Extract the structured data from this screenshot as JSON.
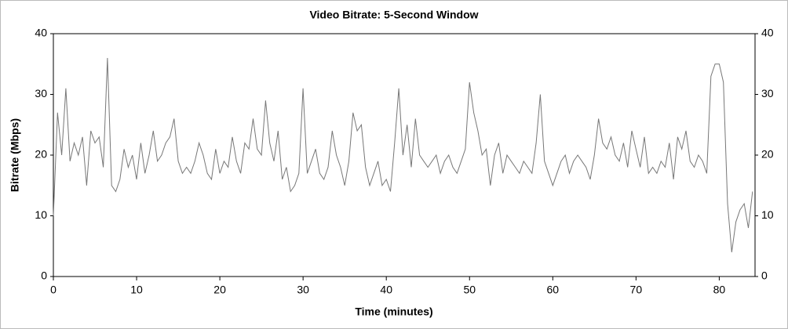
{
  "chart_data": {
    "type": "line",
    "title": "Video Bitrate: 5-Second Window",
    "x_label": "Time (minutes)",
    "y_label": "Bitrate (Mbps)",
    "xlim": [
      0,
      84.3
    ],
    "ylim": [
      0,
      40
    ],
    "xticks": [
      0,
      10,
      20,
      30,
      40,
      50,
      60,
      70,
      80
    ],
    "yticks": [
      0,
      10,
      20,
      30,
      40
    ],
    "x": [
      0,
      0.5,
      1,
      1.5,
      2,
      2.5,
      3,
      3.5,
      4,
      4.5,
      5,
      5.5,
      6,
      6.5,
      7,
      7.5,
      8,
      8.5,
      9,
      9.5,
      10,
      10.5,
      11,
      11.5,
      12,
      12.5,
      13,
      13.5,
      14,
      14.5,
      15,
      15.5,
      16,
      16.5,
      17,
      17.5,
      18,
      18.5,
      19,
      19.5,
      20,
      20.5,
      21,
      21.5,
      22,
      22.5,
      23,
      23.5,
      24,
      24.5,
      25,
      25.5,
      26,
      26.5,
      27,
      27.5,
      28,
      28.5,
      29,
      29.5,
      30,
      30.5,
      31,
      31.5,
      32,
      32.5,
      33,
      33.5,
      34,
      34.5,
      35,
      35.5,
      36,
      36.5,
      37,
      37.5,
      38,
      38.5,
      39,
      39.5,
      40,
      40.5,
      41,
      41.5,
      42,
      42.5,
      43,
      43.5,
      44,
      44.5,
      45,
      45.5,
      46,
      46.5,
      47,
      47.5,
      48,
      48.5,
      49,
      49.5,
      50,
      50.5,
      51,
      51.5,
      52,
      52.5,
      53,
      53.5,
      54,
      54.5,
      55,
      55.5,
      56,
      56.5,
      57,
      57.5,
      58,
      58.5,
      59,
      59.5,
      60,
      60.5,
      61,
      61.5,
      62,
      62.5,
      63,
      63.5,
      64,
      64.5,
      65,
      65.5,
      66,
      66.5,
      67,
      67.5,
      68,
      68.5,
      69,
      69.5,
      70,
      70.5,
      71,
      71.5,
      72,
      72.5,
      73,
      73.5,
      74,
      74.5,
      75,
      75.5,
      76,
      76.5,
      77,
      77.5,
      78,
      78.5,
      79,
      79.5,
      80,
      80.5,
      81,
      81.5,
      82,
      82.5,
      83,
      83.5,
      84
    ],
    "series": [
      {
        "color": "#777777",
        "values": [
          10,
          27,
          20,
          31,
          19,
          22,
          20,
          23,
          15,
          24,
          22,
          23,
          18,
          36,
          15,
          14,
          16,
          21,
          18,
          20,
          16,
          22,
          17,
          20,
          24,
          19,
          20,
          22,
          23,
          26,
          19,
          17,
          18,
          17,
          19,
          22,
          20,
          17,
          16,
          21,
          17,
          19,
          18,
          23,
          19,
          17,
          22,
          21,
          26,
          21,
          20,
          29,
          22,
          19,
          24,
          16,
          18,
          14,
          15,
          17,
          31,
          17,
          19,
          21,
          17,
          16,
          18,
          24,
          20,
          18,
          15,
          19,
          27,
          24,
          25,
          18,
          15,
          17,
          19,
          15,
          16,
          14,
          22,
          31,
          20,
          25,
          18,
          26,
          20,
          19,
          18,
          19,
          20,
          17,
          19,
          20,
          18,
          17,
          19,
          21,
          32,
          27,
          24,
          20,
          21,
          15,
          20,
          22,
          17,
          20,
          19,
          18,
          17,
          19,
          18,
          17,
          22,
          30,
          19,
          17,
          15,
          17,
          19,
          20,
          17,
          19,
          20,
          19,
          18,
          16,
          20,
          26,
          22,
          21,
          23,
          20,
          19,
          22,
          18,
          24,
          21,
          18,
          23,
          17,
          18,
          17,
          19,
          18,
          22,
          16,
          23,
          21,
          24,
          19,
          18,
          20,
          19,
          17,
          33,
          35,
          35,
          32,
          12,
          4,
          9,
          11,
          12,
          8,
          14
        ]
      }
    ]
  }
}
